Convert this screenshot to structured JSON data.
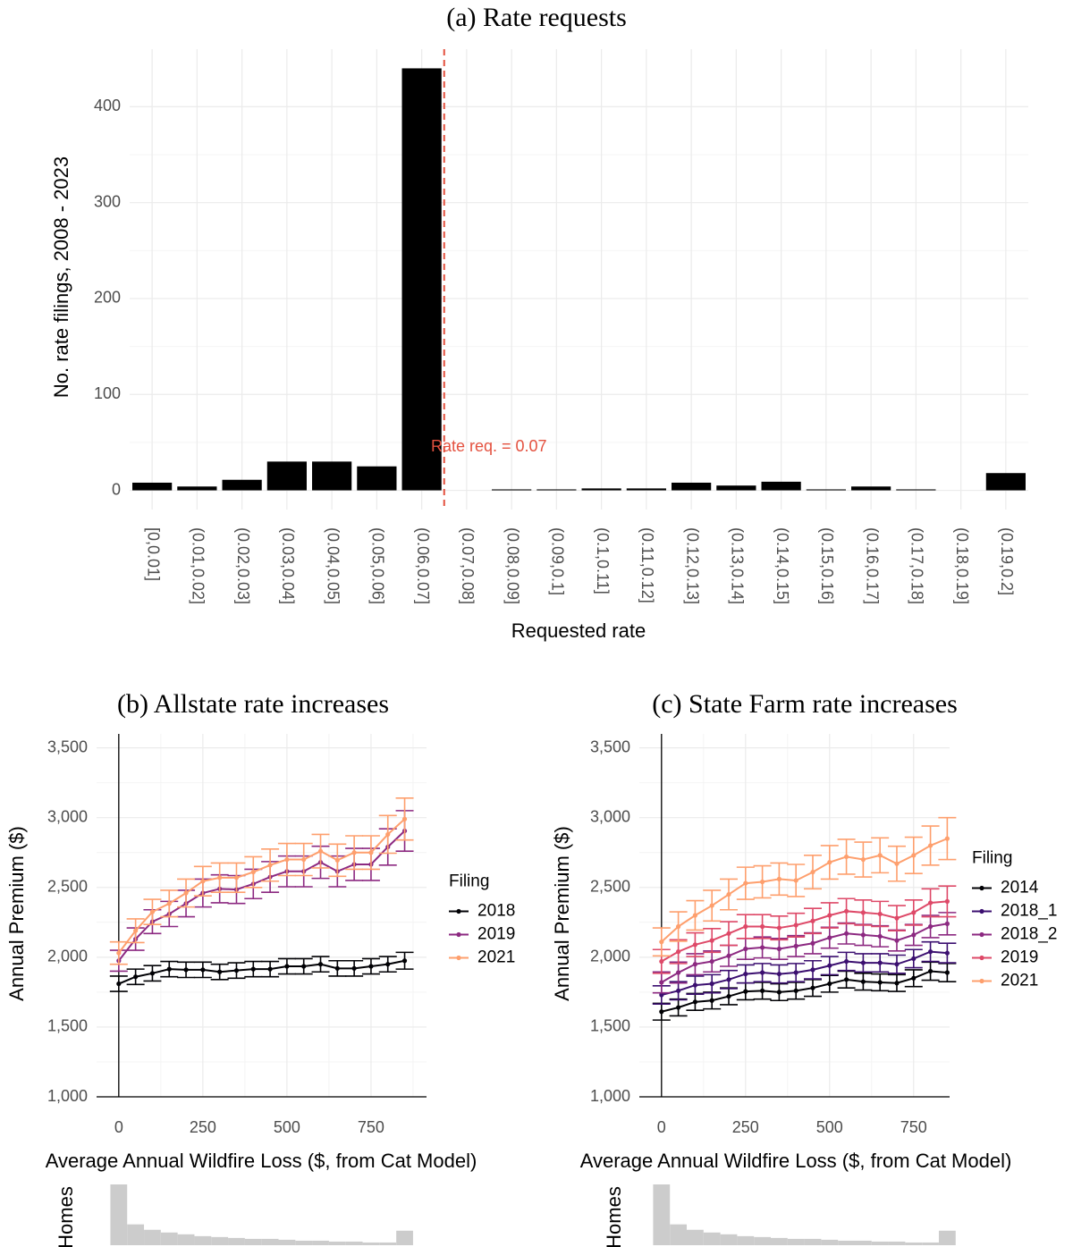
{
  "chart_data": [
    {
      "type": "bar",
      "title": "(a) Rate requests",
      "xlabel": "Requested rate",
      "ylabel": "No. rate filings, 2008 - 2023",
      "categories": [
        "[0,0.01]",
        "(0.01,0.02]",
        "(0.02,0.03]",
        "(0.03,0.04]",
        "(0.04,0.05]",
        "(0.05,0.06]",
        "(0.06,0.07]",
        "(0.07,0.08]",
        "(0.08,0.09]",
        "(0.09,0.1]",
        "(0.1,0.11]",
        "(0.11,0.12]",
        "(0.12,0.13]",
        "(0.13,0.14]",
        "(0.14,0.15]",
        "(0.15,0.16]",
        "(0.16,0.17]",
        "(0.17,0.18]",
        "(0.18,0.19]",
        "(0.19,0.2]"
      ],
      "values": [
        8,
        4,
        11,
        30,
        30,
        25,
        440,
        0,
        1,
        1,
        2,
        2,
        8,
        5,
        9,
        1,
        4,
        1,
        0,
        18
      ],
      "color": "#000000",
      "ylim": [
        -20,
        460
      ],
      "yticks": [
        0,
        100,
        200,
        300,
        400
      ],
      "grid": true,
      "vline": {
        "value": 0.07,
        "label": "Rate req. = 0.07",
        "color": "#e4513f"
      }
    },
    {
      "type": "line",
      "title": "(b) Allstate rate increases",
      "xlabel": "Average Annual Wildfire Loss ($, from Cat Model)",
      "ylabel": "Annual Premium ($)",
      "x": [
        0,
        50,
        100,
        150,
        200,
        250,
        300,
        350,
        400,
        450,
        500,
        550,
        600,
        650,
        700,
        750,
        800,
        850
      ],
      "series": [
        {
          "name": "2018",
          "color": "#000004",
          "values": [
            1810,
            1860,
            1885,
            1915,
            1910,
            1910,
            1895,
            1905,
            1915,
            1915,
            1935,
            1935,
            1950,
            1920,
            1920,
            1935,
            1950,
            1975
          ],
          "errors": [
            55,
            55,
            55,
            55,
            55,
            55,
            55,
            55,
            55,
            55,
            55,
            55,
            55,
            55,
            55,
            55,
            55,
            60
          ]
        },
        {
          "name": "2019",
          "color": "#8c2981",
          "values": [
            1975,
            2130,
            2255,
            2310,
            2385,
            2460,
            2490,
            2485,
            2525,
            2575,
            2615,
            2615,
            2680,
            2615,
            2665,
            2665,
            2790,
            2905
          ],
          "errors": [
            75,
            80,
            85,
            90,
            95,
            100,
            100,
            100,
            105,
            110,
            110,
            110,
            115,
            110,
            115,
            115,
            130,
            145
          ]
        },
        {
          "name": "2021",
          "color": "#fe9f6d",
          "values": [
            2030,
            2190,
            2325,
            2385,
            2460,
            2545,
            2570,
            2570,
            2610,
            2660,
            2700,
            2700,
            2760,
            2695,
            2750,
            2750,
            2880,
            2990
          ],
          "errors": [
            80,
            85,
            90,
            95,
            100,
            105,
            105,
            105,
            110,
            115,
            115,
            115,
            120,
            115,
            120,
            120,
            135,
            150
          ]
        }
      ],
      "xlim": [
        -66,
        915
      ],
      "ylim": [
        1000,
        3600
      ],
      "xticks": [
        0,
        250,
        500,
        750
      ],
      "yticks": [
        {
          "value": 1000,
          "label": "1,000"
        },
        {
          "value": 1500,
          "label": "1,500"
        },
        {
          "value": 2000,
          "label": "2,000"
        },
        {
          "value": 2500,
          "label": "2,500"
        },
        {
          "value": 3000,
          "label": "3,000"
        },
        {
          "value": 3500,
          "label": "3,500"
        }
      ],
      "grid": true,
      "legend": {
        "title": "Filing",
        "position": "right"
      }
    },
    {
      "type": "line",
      "title": "(c) State Farm rate increases",
      "xlabel": "Average Annual Wildfire Loss ($, from Cat Model)",
      "ylabel": "Annual Premium ($)",
      "x": [
        0,
        50,
        100,
        150,
        200,
        250,
        300,
        350,
        400,
        450,
        500,
        550,
        600,
        650,
        700,
        750,
        800,
        850
      ],
      "series": [
        {
          "name": "2014",
          "color": "#000004",
          "values": [
            1610,
            1640,
            1680,
            1690,
            1720,
            1755,
            1760,
            1750,
            1760,
            1780,
            1810,
            1840,
            1825,
            1820,
            1815,
            1850,
            1900,
            1890
          ],
          "errors": [
            60,
            60,
            60,
            60,
            60,
            60,
            60,
            60,
            60,
            60,
            60,
            60,
            60,
            60,
            60,
            60,
            65,
            65
          ]
        },
        {
          "name": "2018_1",
          "color": "#3b0f70",
          "values": [
            1730,
            1760,
            1800,
            1810,
            1840,
            1880,
            1890,
            1880,
            1890,
            1910,
            1940,
            1970,
            1960,
            1960,
            1950,
            1990,
            2040,
            2030
          ],
          "errors": [
            65,
            65,
            65,
            65,
            65,
            65,
            65,
            65,
            65,
            65,
            65,
            65,
            65,
            65,
            65,
            65,
            70,
            70
          ]
        },
        {
          "name": "2018_2",
          "color": "#8c2981",
          "values": [
            1820,
            1890,
            1950,
            1970,
            2010,
            2060,
            2070,
            2060,
            2080,
            2100,
            2140,
            2170,
            2160,
            2150,
            2120,
            2160,
            2220,
            2240
          ],
          "errors": [
            75,
            75,
            75,
            75,
            75,
            75,
            75,
            75,
            75,
            75,
            75,
            75,
            75,
            75,
            75,
            75,
            80,
            80
          ]
        },
        {
          "name": "2019",
          "color": "#de4968",
          "values": [
            1970,
            2040,
            2090,
            2120,
            2170,
            2220,
            2220,
            2210,
            2230,
            2260,
            2300,
            2330,
            2320,
            2310,
            2280,
            2320,
            2390,
            2400
          ],
          "errors": [
            85,
            85,
            85,
            85,
            85,
            85,
            85,
            85,
            85,
            90,
            90,
            90,
            90,
            90,
            90,
            90,
            100,
            110
          ]
        },
        {
          "name": "2021",
          "color": "#fe9f6d",
          "values": [
            2110,
            2220,
            2300,
            2370,
            2450,
            2530,
            2540,
            2560,
            2550,
            2610,
            2680,
            2720,
            2700,
            2730,
            2670,
            2730,
            2800,
            2850
          ],
          "errors": [
            100,
            105,
            105,
            110,
            110,
            115,
            115,
            115,
            115,
            120,
            120,
            125,
            125,
            125,
            125,
            130,
            140,
            150
          ]
        }
      ],
      "xlim": [
        -66,
        857
      ],
      "ylim": [
        1000,
        3600
      ],
      "xticks": [
        0,
        250,
        500,
        750
      ],
      "yticks": [
        {
          "value": 1000,
          "label": "1,000"
        },
        {
          "value": 1500,
          "label": "1,500"
        },
        {
          "value": 2000,
          "label": "2,000"
        },
        {
          "value": 2500,
          "label": "2,500"
        },
        {
          "value": 3000,
          "label": "3,000"
        },
        {
          "value": 3500,
          "label": "3,500"
        }
      ],
      "grid": true,
      "legend": {
        "title": "Filing",
        "position": "right"
      }
    },
    {
      "type": "histogram",
      "ylabel": "Homes",
      "bins": [
        -25,
        25,
        75,
        125,
        175,
        225,
        275,
        325,
        375,
        425,
        475,
        525,
        575,
        625,
        675,
        725,
        775,
        825,
        875
      ],
      "values": [
        67,
        23,
        17,
        14,
        12,
        10,
        9,
        8,
        7,
        7,
        6,
        5,
        5,
        4,
        4,
        3,
        3,
        16
      ],
      "color": "#cccccc",
      "xlim": [
        -66,
        915
      ]
    },
    {
      "type": "histogram",
      "ylabel": "Homes",
      "bins": [
        -25,
        25,
        75,
        125,
        175,
        225,
        275,
        325,
        375,
        425,
        475,
        525,
        575,
        625,
        675,
        725,
        775,
        825,
        875
      ],
      "values": [
        67,
        23,
        17,
        14,
        12,
        10,
        9,
        8,
        7,
        7,
        6,
        5,
        5,
        4,
        4,
        3,
        3,
        16
      ],
      "color": "#cccccc",
      "xlim": [
        -66,
        857
      ]
    }
  ]
}
